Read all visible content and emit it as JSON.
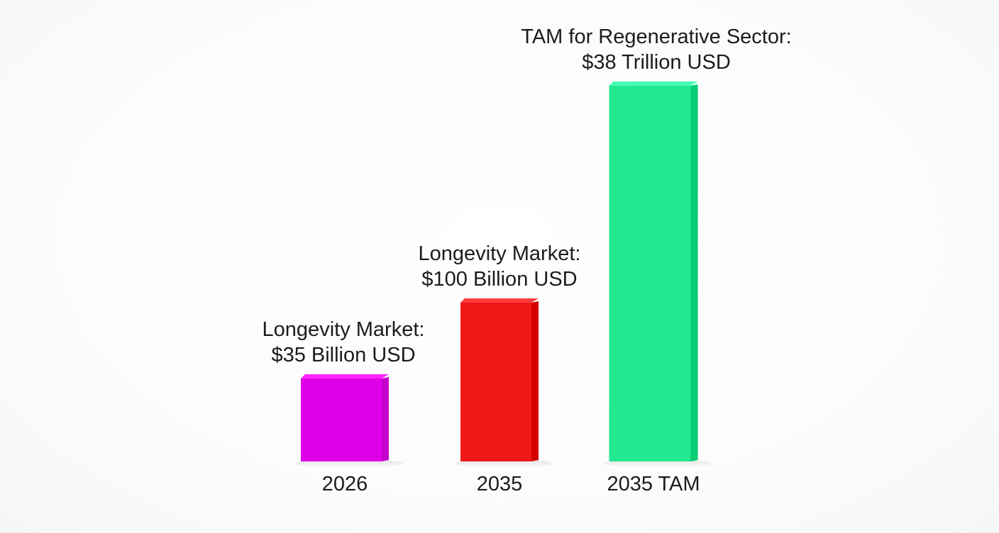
{
  "chart_data": {
    "type": "bar",
    "categories": [
      "2026",
      "2035",
      "2035 TAM"
    ],
    "values": [
      35,
      100,
      38000
    ],
    "unit": "Billion USD",
    "data_labels": [
      [
        "Longevity Market:",
        "$35 Billion USD"
      ],
      [
        "Longevity Market:",
        "$100 Billion USD"
      ],
      [
        "TAM for Regenerative Sector:",
        "$38 Trillion USD"
      ]
    ],
    "colors": [
      "#e000e8",
      "#f01818",
      "#22e890"
    ],
    "title": "",
    "xlabel": "",
    "ylabel": "",
    "grid": false,
    "axes_visible": false,
    "note": ""
  }
}
